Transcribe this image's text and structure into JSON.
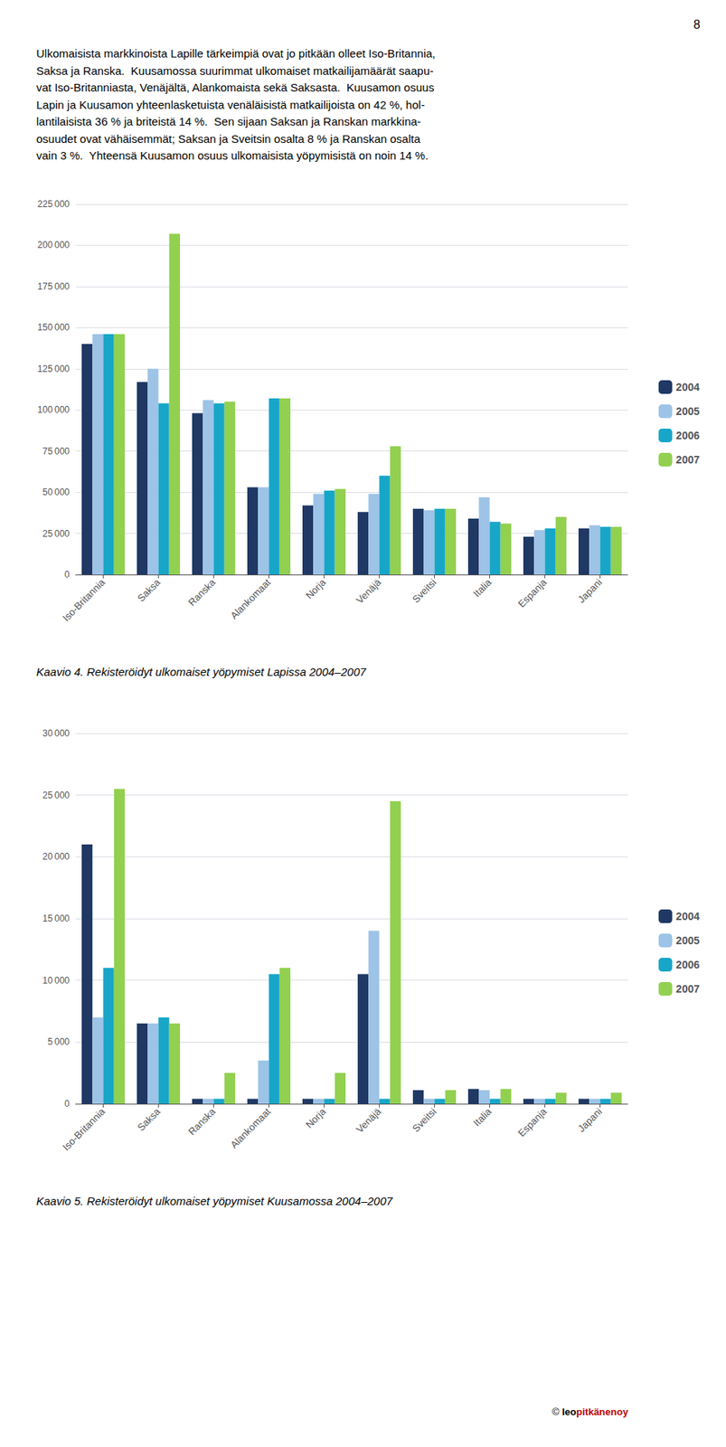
{
  "chart_data": [
    {
      "type": "bar",
      "title": "Kaavio 4. Rekisteröidyt ulkomaiset yöpymiset Lapissa 2004–2007",
      "annotations": [
        "8",
        "Ulkomaisista markkinoista Lapille tärkeimpiä ovat jo pitkään olleet Iso-Britannia,",
        "Saksa ja Ranska.  Kuusamossa suurimmat ulkomaiset matkailijamäärät saapu-",
        "vat Iso-Britanniasta, Venäjältä, Alankomaista sekä Saksasta.  Kuusamon osuus",
        "Lapin ja Kuusamon yhteenlasketuista venäläisistä matkailijoista on 42 %, hol-",
        "lantilaisista 36 % ja briteistä 14 %.  Sen sijaan Saksan ja Ranskan markkina-",
        "osuudet ovat vähäisemmät; Saksan ja Sveitsin osalta 8 % ja Ranskan osalta",
        "vain 3 %.  Yhteensä Kuusamon osuus ulkomaisista yöpymisistä on noin 14 %."
      ],
      "categories": [
        "Iso-Britannia",
        "Saksa",
        "Ranska",
        "Alankomaat",
        "Norja",
        "Venäjä",
        "Sveitsi",
        "Italia",
        "Espanja",
        "Japani"
      ],
      "series": [
        {
          "name": "2004",
          "color": "#1F3864",
          "values": [
            140000,
            117000,
            98000,
            53000,
            42000,
            38000,
            40000,
            34000,
            23000,
            28000
          ]
        },
        {
          "name": "2005",
          "color": "#9DC3E6",
          "values": [
            146000,
            125000,
            106000,
            53000,
            49000,
            49000,
            39000,
            47000,
            27000,
            30000
          ]
        },
        {
          "name": "2006",
          "color": "#17A6C8",
          "values": [
            146000,
            104000,
            104000,
            107000,
            51000,
            60000,
            40000,
            32000,
            28000,
            29000
          ]
        },
        {
          "name": "2007",
          "color": "#92D050",
          "values": [
            146000,
            207000,
            105000,
            107000,
            52000,
            78000,
            40000,
            31000,
            35000,
            29000
          ]
        }
      ],
      "ylim": [
        0,
        225000
      ],
      "yticks": [
        0,
        {
          "value": 25000,
          "label": "25 000"
        },
        {
          "value": 50000,
          "label": "50 000"
        },
        {
          "value": 75000,
          "label": "75 000"
        },
        {
          "value": 100000,
          "label": "100 000"
        },
        {
          "value": 125000,
          "label": "125 000"
        },
        {
          "value": 150000,
          "label": "150 000"
        },
        {
          "value": 175000,
          "label": "175 000"
        },
        {
          "value": 200000,
          "label": "200 000"
        },
        {
          "value": 225000,
          "label": "225 000"
        }
      ],
      "grid": true,
      "legend": "right"
    },
    {
      "type": "bar",
      "title": "Kaavio 5. Rekisteröidyt ulkomaiset yöpymiset Kuusamossa 2004–2007",
      "annotations": [
        "©",
        "leo",
        "pitkänenoy"
      ],
      "categories": [
        "Iso-Britannia",
        "Saksa",
        "Ranska",
        "Alankomaat",
        "Norja",
        "Venäjä",
        "Sveitsi",
        "Italia",
        "Espanja",
        "Japani"
      ],
      "series": [
        {
          "name": "2004",
          "color": "#1F3864",
          "values": [
            21000,
            6500,
            400,
            400,
            400,
            10500,
            1100,
            1200,
            400,
            400
          ]
        },
        {
          "name": "2005",
          "color": "#9DC3E6",
          "values": [
            7000,
            6500,
            400,
            3500,
            400,
            14000,
            400,
            1100,
            400,
            400
          ]
        },
        {
          "name": "2006",
          "color": "#17A6C8",
          "values": [
            11000,
            7000,
            400,
            10500,
            400,
            400,
            400,
            400,
            400,
            400
          ]
        },
        {
          "name": "2007",
          "color": "#92D050",
          "values": [
            25500,
            6500,
            2500,
            11000,
            2500,
            24500,
            1100,
            1200,
            900,
            900
          ]
        }
      ],
      "ylim": [
        0,
        30000
      ],
      "yticks": [
        0,
        {
          "value": 5000,
          "label": "5 000"
        },
        {
          "value": 10000,
          "label": "10 000"
        },
        {
          "value": 15000,
          "label": "15 000"
        },
        {
          "value": 20000,
          "label": "20 000"
        },
        {
          "value": 25000,
          "label": "25 000"
        },
        {
          "value": 30000,
          "label": "30 000"
        }
      ],
      "grid": true,
      "legend": "right"
    }
  ]
}
